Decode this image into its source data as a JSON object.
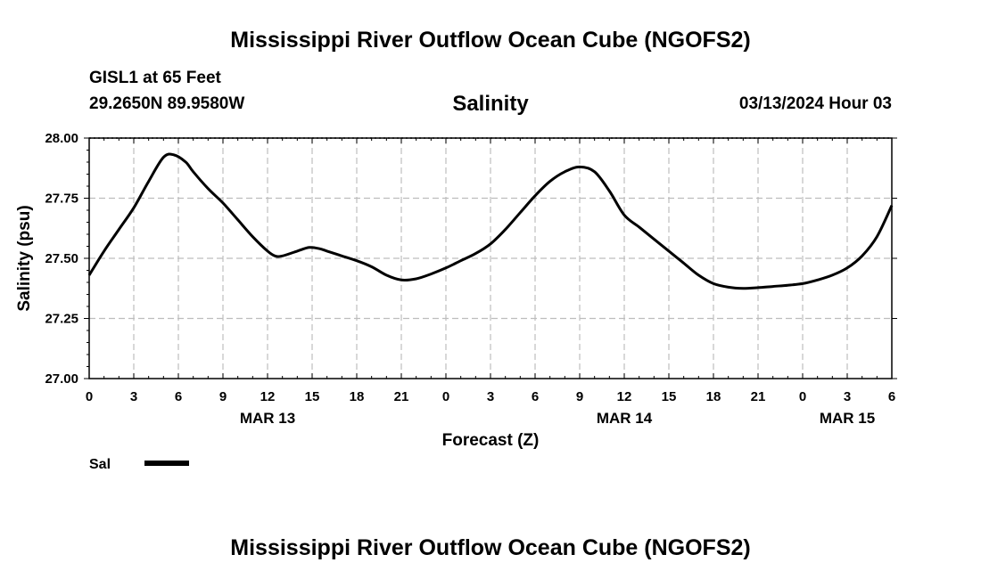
{
  "page": {
    "title": "Mississippi River Outflow Ocean Cube (NGOFS2)",
    "footer_title": "Mississippi River Outflow Ocean Cube (NGOFS2)",
    "station": "GISL1 at 65 Feet",
    "coords": "29.2650N  89.9580W",
    "variable": "Salinity",
    "datetime": "03/13/2024 Hour 03"
  },
  "chart_data": {
    "type": "line",
    "title": "Salinity",
    "xlabel": "Forecast (Z)",
    "ylabel": "Salinity (psu)",
    "x_unit": "forecast hours",
    "xlim": [
      0,
      54
    ],
    "ylim": [
      27.0,
      28.0
    ],
    "grid": true,
    "y_ticks": [
      27.0,
      27.25,
      27.5,
      27.75,
      28.0
    ],
    "y_tick_labels": [
      "27.00",
      "27.25",
      "27.50",
      "27.75",
      "28.00"
    ],
    "x_ticks": [
      0,
      3,
      6,
      9,
      12,
      15,
      18,
      21,
      24,
      27,
      30,
      33,
      36,
      39,
      42,
      45,
      48,
      51,
      54
    ],
    "x_tick_labels": [
      "0",
      "3",
      "6",
      "9",
      "12",
      "15",
      "18",
      "21",
      "0",
      "3",
      "6",
      "9",
      "12",
      "15",
      "18",
      "21",
      "0",
      "3",
      "6"
    ],
    "date_labels": [
      {
        "x": 12,
        "label": "MAR 13"
      },
      {
        "x": 36,
        "label": "MAR 14"
      },
      {
        "x": 51,
        "label": "MAR 15"
      }
    ],
    "legend": {
      "position": "bottom-left",
      "entries": [
        {
          "name": "Sal",
          "color": "#000000"
        }
      ]
    },
    "series": [
      {
        "name": "Sal",
        "color": "#000000",
        "x": [
          0,
          1,
          2,
          3,
          4,
          5,
          5.7,
          6.5,
          7,
          8,
          9,
          10,
          11,
          12,
          12.5,
          13,
          14,
          14.8,
          15.5,
          16,
          17,
          18,
          19,
          20,
          21,
          22,
          23,
          24,
          25,
          26,
          27,
          28,
          29,
          30,
          31,
          32,
          33,
          34,
          35,
          36,
          37,
          38,
          39,
          40,
          41,
          42,
          43,
          44,
          45,
          46,
          47,
          48,
          49,
          50,
          51,
          52,
          53,
          54
        ],
        "values": [
          27.43,
          27.53,
          27.62,
          27.71,
          27.82,
          27.92,
          27.93,
          27.9,
          27.86,
          27.79,
          27.73,
          27.66,
          27.59,
          27.53,
          27.51,
          27.51,
          27.53,
          27.545,
          27.54,
          27.53,
          27.51,
          27.49,
          27.465,
          27.43,
          27.41,
          27.415,
          27.435,
          27.46,
          27.49,
          27.52,
          27.56,
          27.62,
          27.69,
          27.76,
          27.82,
          27.86,
          27.88,
          27.86,
          27.78,
          27.68,
          27.63,
          27.58,
          27.53,
          27.48,
          27.43,
          27.395,
          27.38,
          27.375,
          27.378,
          27.383,
          27.388,
          27.395,
          27.41,
          27.43,
          27.46,
          27.51,
          27.59,
          27.72
        ]
      }
    ]
  }
}
